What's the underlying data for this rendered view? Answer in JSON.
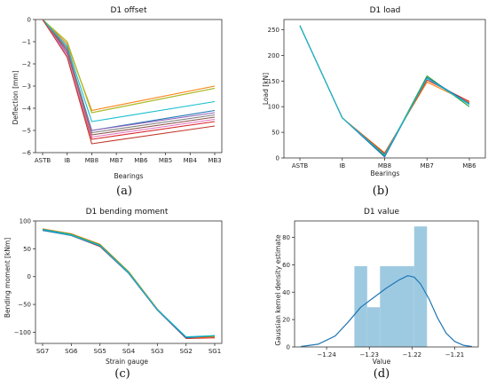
{
  "chart_data": [
    {
      "type": "line",
      "title": "D1 offset",
      "xlabel": "Bearings",
      "ylabel": "Deflection [mm]",
      "categories": [
        "ASTB",
        "IB",
        "MB8",
        "MB7",
        "MB6",
        "MB5",
        "MB4",
        "MB3"
      ],
      "ylim": [
        -6,
        0
      ],
      "yticks": [
        0,
        -1,
        -2,
        -3,
        -4,
        -5,
        -6
      ],
      "grid": false,
      "series": [
        {
          "color": "#1f77b4",
          "values": [
            0,
            -1.3,
            -5.0,
            null,
            null,
            null,
            null,
            -4.1
          ]
        },
        {
          "color": "#ff7f0e",
          "values": [
            0,
            -1.1,
            -4.1,
            null,
            null,
            null,
            null,
            -3.0
          ]
        },
        {
          "color": "#2ca02c",
          "values": [
            0,
            -1.0,
            -4.2,
            null,
            null,
            null,
            null,
            -3.1
          ]
        },
        {
          "color": "#d62728",
          "values": [
            0,
            -1.6,
            -5.4,
            null,
            null,
            null,
            null,
            -4.6
          ]
        },
        {
          "color": "#9467bd",
          "values": [
            0,
            -1.5,
            -5.0,
            null,
            null,
            null,
            null,
            -4.2
          ]
        },
        {
          "color": "#8c564b",
          "values": [
            0,
            -1.4,
            -5.2,
            null,
            null,
            null,
            null,
            -4.4
          ]
        },
        {
          "color": "#e377c2",
          "values": [
            0,
            -1.6,
            -5.3,
            null,
            null,
            null,
            null,
            -4.5
          ]
        },
        {
          "color": "#7f7f7f",
          "values": [
            0,
            -1.3,
            -5.1,
            null,
            null,
            null,
            null,
            -4.3
          ]
        },
        {
          "color": "#bcbd22",
          "values": [
            0,
            -1.0,
            -4.2,
            null,
            null,
            null,
            null,
            -3.1
          ]
        },
        {
          "color": "#17becf",
          "values": [
            0,
            -1.2,
            -4.6,
            null,
            null,
            null,
            null,
            -3.7
          ]
        },
        {
          "color": "#c0392b",
          "values": [
            0,
            -1.7,
            -5.6,
            null,
            null,
            null,
            null,
            -4.8
          ]
        }
      ]
    },
    {
      "type": "line",
      "title": "D1 load",
      "xlabel": "Bearings",
      "ylabel": "Load [kN]",
      "categories": [
        "ASTB",
        "IB",
        "MB8",
        "MB7",
        "MB6"
      ],
      "ylim": [
        0,
        270
      ],
      "yticks": [
        0,
        50,
        100,
        150,
        200,
        250
      ],
      "grid": false,
      "series": [
        {
          "color": "#ff7f0e",
          "values": [
            258,
            78,
            10,
            148,
            108
          ]
        },
        {
          "color": "#d62728",
          "values": [
            258,
            78,
            8,
            152,
            110
          ]
        },
        {
          "color": "#2ca02c",
          "values": [
            258,
            78,
            4,
            160,
            100
          ]
        },
        {
          "color": "#1f77b4",
          "values": [
            258,
            78,
            2,
            157,
            106
          ]
        },
        {
          "color": "#17becf",
          "values": [
            258,
            78,
            6,
            155,
            104
          ]
        }
      ]
    },
    {
      "type": "line",
      "title": "D1 bending moment",
      "xlabel": "Strain gauge",
      "ylabel": "Bending moment [kNm]",
      "categories": [
        "SG7",
        "SG6",
        "SG5",
        "SG4",
        "SG3",
        "SG2",
        "SG1"
      ],
      "ylim": [
        -120,
        100
      ],
      "yticks": [
        100,
        50,
        0,
        -50,
        -100
      ],
      "grid": false,
      "series": [
        {
          "color": "#d62728",
          "values": [
            84,
            74,
            54,
            6,
            -60,
            -111,
            -110
          ]
        },
        {
          "color": "#ff7f0e",
          "values": [
            86,
            77,
            58,
            9,
            -58,
            -110,
            -108
          ]
        },
        {
          "color": "#2ca02c",
          "values": [
            85,
            76,
            57,
            8,
            -59,
            -109,
            -107
          ]
        },
        {
          "color": "#1f77b4",
          "values": [
            83,
            74,
            55,
            6,
            -60,
            -110,
            -106
          ]
        },
        {
          "color": "#17becf",
          "values": [
            85,
            75,
            56,
            7,
            -59,
            -108,
            -106
          ]
        }
      ]
    },
    {
      "type": "histogram",
      "title": "D1 value",
      "xlabel": "Value",
      "ylabel": "Gaussian kernel density estimate",
      "xlim": [
        -1.2475,
        -1.2045
      ],
      "xticks": [
        -1.24,
        -1.23,
        -1.22,
        -1.21
      ],
      "ylim": [
        0,
        92
      ],
      "yticks": [
        0,
        20,
        40,
        60,
        80
      ],
      "bar_color": "#9ecae1",
      "line_color": "#1f77b4",
      "bins": [
        {
          "x0": -1.2335,
          "x1": -1.2305,
          "height": 59
        },
        {
          "x0": -1.2305,
          "x1": -1.2275,
          "height": 29
        },
        {
          "x0": -1.2275,
          "x1": -1.2195,
          "height": 59
        },
        {
          "x0": -1.2195,
          "x1": -1.2165,
          "height": 88
        }
      ],
      "kde": {
        "x": [
          -1.246,
          -1.242,
          -1.238,
          -1.235,
          -1.232,
          -1.229,
          -1.226,
          -1.223,
          -1.221,
          -1.2195,
          -1.218,
          -1.216,
          -1.214,
          -1.212,
          -1.21,
          -1.208,
          -1.206
        ],
        "y": [
          0.3,
          2,
          8,
          18,
          29,
          36,
          43,
          49,
          52,
          51,
          46,
          35,
          21,
          10,
          4,
          1.2,
          0.3
        ]
      }
    }
  ],
  "captions": [
    "(a)",
    "(b)",
    "(c)",
    "(d)"
  ]
}
